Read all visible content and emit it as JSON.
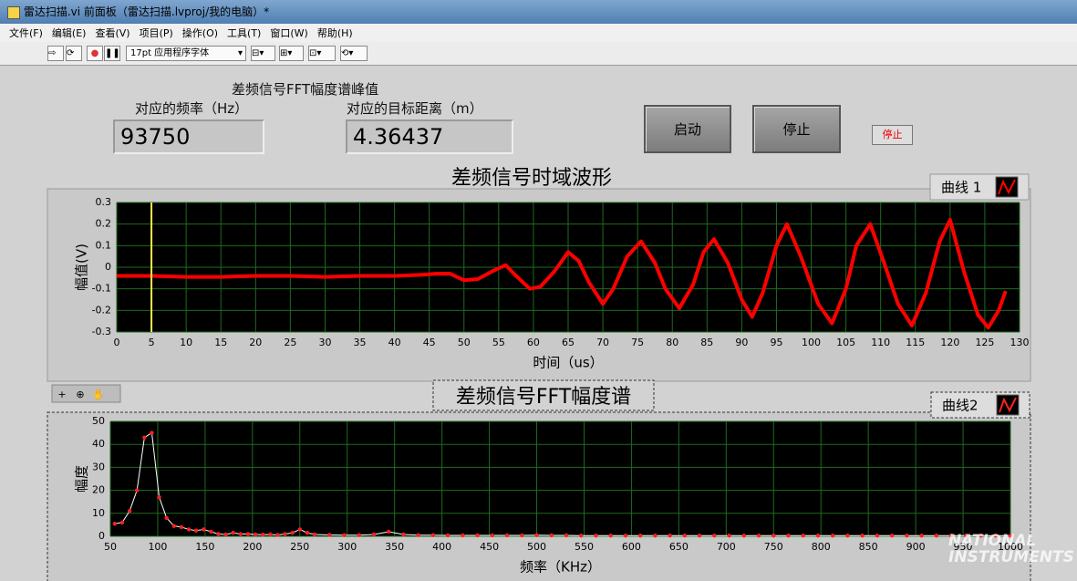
{
  "window": {
    "title": "雷达扫描.vi 前面板（雷达扫描.lvproj/我的电脑）*"
  },
  "menu": [
    "文件(F)",
    "编辑(E)",
    "查看(V)",
    "项目(P)",
    "操作(O)",
    "工具(T)",
    "窗口(W)",
    "帮助(H)"
  ],
  "toolbar": {
    "font": "17pt 应用程序字体"
  },
  "indicators": {
    "group_label": "差频信号FFT幅度谱峰值",
    "frequency": {
      "label": "对应的频率（Hz）",
      "value": 93750
    },
    "distance": {
      "label": "对应的目标距离（m）",
      "value": 4.36437
    }
  },
  "buttons": {
    "start": "启动",
    "stop": "停止",
    "stop_small": "停止"
  },
  "watermark": [
    "NATIONAL",
    "INSTRUMENTS"
  ],
  "chart_data": [
    {
      "type": "line",
      "title": "差频信号时域波形",
      "xlabel": "时间（us）",
      "ylabel": "幅值(V)",
      "grid": true,
      "cursor_x": 5,
      "x": [
        0,
        5,
        10,
        15,
        20,
        25,
        30,
        35,
        40,
        44,
        46,
        48,
        49,
        50,
        52,
        54,
        56,
        57.5,
        59.5,
        61,
        63,
        65,
        66.5,
        68,
        70,
        71.5,
        73.5,
        75.5,
        77.5,
        79,
        81,
        83,
        84.5,
        86,
        88,
        90,
        91.5,
        93,
        95,
        96.5,
        98.5,
        101,
        103,
        105,
        106.5,
        108.5,
        110.5,
        112.5,
        114.5,
        116.5,
        118.5,
        120,
        122,
        124,
        125.5,
        127,
        128
      ],
      "series": [
        {
          "name": "曲线 1",
          "color": "#ff0000",
          "values": [
            -0.04,
            -0.04,
            -0.045,
            -0.045,
            -0.04,
            -0.04,
            -0.045,
            -0.04,
            -0.04,
            -0.035,
            -0.03,
            -0.03,
            -0.045,
            -0.06,
            -0.055,
            -0.02,
            0.01,
            -0.04,
            -0.1,
            -0.09,
            -0.02,
            0.07,
            0.03,
            -0.07,
            -0.17,
            -0.1,
            0.05,
            0.12,
            0.02,
            -0.1,
            -0.19,
            -0.08,
            0.07,
            0.13,
            0.02,
            -0.15,
            -0.23,
            -0.12,
            0.1,
            0.2,
            0.05,
            -0.17,
            -0.26,
            -0.1,
            0.1,
            0.2,
            0.02,
            -0.17,
            -0.27,
            -0.12,
            0.12,
            0.22,
            -0.02,
            -0.22,
            -0.28,
            -0.2,
            -0.11
          ]
        }
      ],
      "xlim": [
        0,
        130
      ],
      "xticks": [
        0,
        5,
        10,
        15,
        20,
        25,
        30,
        35,
        40,
        45,
        50,
        55,
        60,
        65,
        70,
        75,
        80,
        85,
        90,
        95,
        100,
        105,
        110,
        115,
        120,
        125,
        130
      ],
      "ylim": [
        -0.3,
        0.3
      ],
      "yticks": [
        -0.3,
        -0.2,
        -0.1,
        0,
        0.1,
        0.2,
        0.3
      ]
    },
    {
      "type": "line",
      "title": "差频信号FFT幅度谱",
      "xlabel": "频率（KHz）",
      "ylabel": "幅度",
      "grid": true,
      "markers": true,
      "marker_color": "#ff2020",
      "x": [
        54.69,
        62.5,
        70.31,
        78.13,
        85.94,
        93.75,
        101.56,
        109.38,
        117.19,
        125,
        132.81,
        140.63,
        148.44,
        156.25,
        164.06,
        171.88,
        179.69,
        187.5,
        195.31,
        203.13,
        210.94,
        218.75,
        226.56,
        234.38,
        242.19,
        250,
        257.81,
        265.63,
        281.25,
        296.88,
        312.5,
        328.13,
        343.75,
        359.38,
        375,
        390.63,
        406.25,
        421.88,
        437.5,
        453.13,
        468.75,
        484.38,
        500,
        515.63,
        531.25,
        546.88,
        562.5,
        578.13,
        593.75,
        609.38,
        625,
        640.63,
        656.25,
        671.88,
        687.5,
        703.13,
        718.75,
        734.38,
        750,
        765.63,
        781.25,
        796.88,
        812.5,
        828.13,
        843.75,
        859.38,
        875,
        890.63,
        906.25,
        921.88,
        937.5,
        953.13,
        968.75,
        984.38,
        1000
      ],
      "series": [
        {
          "name": "曲线2",
          "color": "#ffffff",
          "values": [
            5.5,
            6,
            11,
            20,
            43,
            45,
            17,
            8,
            4.5,
            4,
            3,
            2.5,
            3,
            2,
            1,
            0.8,
            1.5,
            1,
            1,
            0.8,
            0.7,
            0.8,
            0.6,
            1,
            1.5,
            3,
            1.5,
            0.8,
            0.6,
            0.5,
            0.5,
            0.8,
            2,
            0.8,
            0.5,
            0.5,
            0.4,
            0.4,
            0.4,
            0.4,
            0.4,
            0.4,
            0.5,
            0.4,
            0.4,
            0.3,
            0.3,
            0.3,
            0.3,
            0.3,
            0.3,
            0.3,
            0.3,
            0.3,
            0.3,
            0.3,
            0.3,
            0.3,
            0.3,
            0.3,
            0.3,
            0.3,
            0.3,
            0.3,
            0.3,
            0.3,
            0.3,
            0.3,
            0.3,
            0.3,
            0.3,
            0.3,
            0.3,
            0.3,
            0.3
          ]
        }
      ],
      "xlim": [
        50,
        1000
      ],
      "xticks": [
        50,
        100,
        150,
        200,
        250,
        300,
        350,
        400,
        450,
        500,
        550,
        600,
        650,
        700,
        750,
        800,
        850,
        900,
        950,
        1000
      ],
      "ylim": [
        0,
        50
      ],
      "yticks": [
        0,
        10,
        20,
        30,
        40,
        50
      ]
    }
  ]
}
